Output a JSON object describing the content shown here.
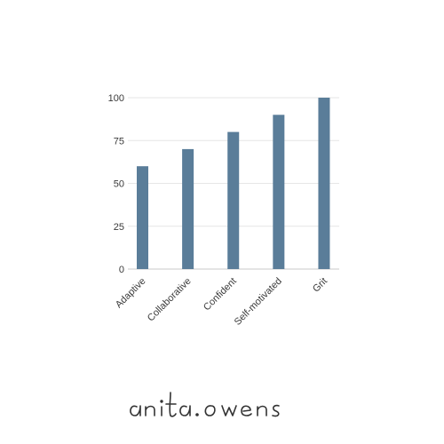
{
  "chart_data": {
    "type": "bar",
    "categories": [
      "Adaptive",
      "Collaborative",
      "Confident",
      "Self-motivated",
      "Grit"
    ],
    "values": [
      60,
      70,
      80,
      90,
      100
    ],
    "title": "",
    "xlabel": "",
    "ylabel": "",
    "ylim": [
      0,
      100
    ],
    "yticks": [
      0,
      25,
      50,
      75,
      100
    ],
    "grid": true,
    "bar_color": "#5a7d99",
    "grid_color": "#e6e6e6",
    "axis_color": "#c8c8c8"
  },
  "signature": {
    "text": "anita.owens",
    "color": "#333333"
  }
}
